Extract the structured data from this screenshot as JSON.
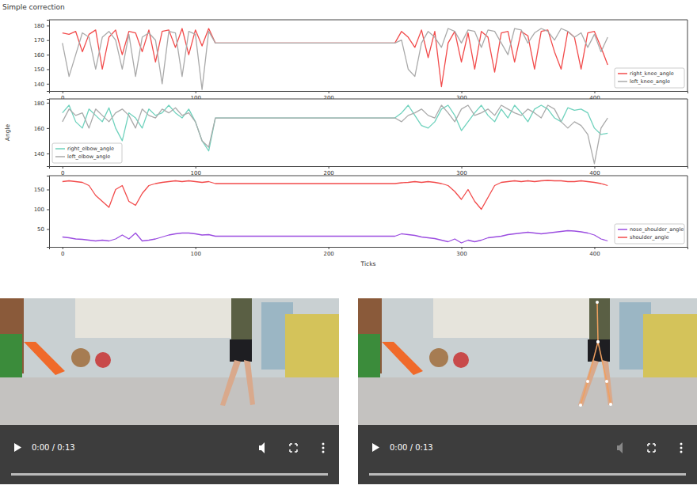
{
  "page": {
    "title": "Simple correction",
    "videos": [
      {
        "time": "0:00 / 0:13"
      },
      {
        "time": "0:00 / 0:13"
      }
    ]
  },
  "chart_data": [
    {
      "type": "line",
      "x": [
        0,
        5,
        10,
        15,
        20,
        25,
        30,
        35,
        40,
        45,
        50,
        55,
        60,
        65,
        70,
        75,
        80,
        85,
        90,
        95,
        100,
        105,
        110,
        115,
        250,
        255,
        260,
        265,
        270,
        275,
        280,
        285,
        290,
        295,
        300,
        305,
        310,
        315,
        320,
        325,
        330,
        335,
        340,
        345,
        350,
        355,
        360,
        365,
        370,
        375,
        380,
        385,
        390,
        395,
        400,
        405,
        410
      ],
      "xlim": [
        -10,
        470
      ],
      "xticks": [
        0,
        100,
        200,
        300,
        400
      ],
      "ylim": [
        135,
        184
      ],
      "yticks": [
        140,
        150,
        160,
        170,
        180
      ],
      "legend": "lower right",
      "series": [
        {
          "name": "right_knee_angle",
          "color": "#f24b4b",
          "values": [
            175,
            174,
            176,
            162,
            174,
            177,
            150,
            172,
            177,
            160,
            176,
            175,
            162,
            177,
            155,
            176,
            177,
            165,
            178,
            160,
            177,
            166,
            178,
            168,
            168,
            176,
            172,
            165,
            177,
            158,
            176,
            138,
            168,
            176,
            155,
            175,
            150,
            176,
            172,
            148,
            175,
            176,
            155,
            176,
            173,
            150,
            176,
            177,
            162,
            150,
            176,
            172,
            150,
            175,
            176,
            165,
            153
          ]
        },
        {
          "name": "left_knee_angle",
          "color": "#aaaaaa",
          "values": [
            168,
            145,
            160,
            175,
            172,
            150,
            172,
            176,
            170,
            150,
            174,
            145,
            172,
            175,
            170,
            140,
            176,
            175,
            145,
            176,
            174,
            136,
            176,
            168,
            168,
            170,
            150,
            145,
            168,
            176,
            172,
            165,
            178,
            176,
            168,
            177,
            176,
            165,
            177,
            176,
            168,
            160,
            178,
            177,
            168,
            175,
            178,
            176,
            170,
            178,
            176,
            172,
            175,
            165,
            174,
            162,
            172
          ]
        }
      ]
    },
    {
      "type": "line",
      "x": [
        0,
        5,
        10,
        15,
        20,
        25,
        30,
        35,
        40,
        45,
        50,
        55,
        60,
        65,
        70,
        75,
        80,
        85,
        90,
        95,
        100,
        105,
        110,
        115,
        250,
        255,
        260,
        265,
        270,
        275,
        280,
        285,
        290,
        295,
        300,
        305,
        310,
        315,
        320,
        325,
        330,
        335,
        340,
        345,
        350,
        355,
        360,
        365,
        370,
        375,
        380,
        385,
        390,
        395,
        400,
        405,
        410
      ],
      "xlim": [
        -10,
        470
      ],
      "xticks": [
        0,
        100,
        200,
        300,
        400
      ],
      "ylim": [
        130,
        183
      ],
      "yticks": [
        140,
        160,
        180
      ],
      "y_label": "Angle",
      "legend": "lower left",
      "series": [
        {
          "name": "right_elbow_angle",
          "color": "#6fd2bd",
          "values": [
            172,
            178,
            165,
            160,
            175,
            170,
            165,
            176,
            160,
            150,
            172,
            168,
            160,
            175,
            170,
            172,
            178,
            172,
            168,
            175,
            165,
            150,
            142,
            168,
            168,
            172,
            178,
            170,
            162,
            160,
            165,
            175,
            178,
            170,
            158,
            165,
            172,
            178,
            170,
            165,
            175,
            168,
            178,
            172,
            165,
            175,
            178,
            175,
            168,
            165,
            176,
            174,
            175,
            172,
            160,
            155,
            156
          ]
        },
        {
          "name": "left_elbow_angle",
          "color": "#aaaaaa",
          "values": [
            165,
            175,
            170,
            172,
            160,
            175,
            170,
            165,
            172,
            175,
            170,
            160,
            175,
            170,
            168,
            175,
            172,
            176,
            170,
            172,
            165,
            150,
            145,
            168,
            168,
            165,
            170,
            172,
            175,
            170,
            168,
            178,
            172,
            165,
            175,
            178,
            170,
            172,
            175,
            170,
            178,
            175,
            172,
            170,
            175,
            172,
            168,
            178,
            175,
            165,
            160,
            165,
            162,
            155,
            132,
            160,
            168
          ]
        }
      ]
    },
    {
      "type": "line",
      "x": [
        0,
        5,
        10,
        15,
        20,
        25,
        30,
        35,
        40,
        45,
        50,
        55,
        60,
        65,
        70,
        75,
        80,
        85,
        90,
        95,
        100,
        105,
        110,
        115,
        250,
        255,
        260,
        265,
        270,
        275,
        280,
        285,
        290,
        295,
        300,
        305,
        310,
        315,
        320,
        325,
        330,
        335,
        340,
        345,
        350,
        355,
        360,
        365,
        370,
        375,
        380,
        385,
        390,
        395,
        400,
        405,
        410
      ],
      "xlim": [
        -10,
        470
      ],
      "xticks": [
        0,
        100,
        200,
        300,
        400
      ],
      "ylim": [
        5,
        185
      ],
      "yticks": [
        50,
        100,
        150
      ],
      "x_label": "Ticks",
      "legend": "lower right",
      "series": [
        {
          "name": "nose_shoulder_angle",
          "color": "#9b4de0",
          "values": [
            30,
            28,
            25,
            24,
            22,
            20,
            22,
            20,
            25,
            35,
            25,
            40,
            20,
            22,
            25,
            30,
            35,
            38,
            40,
            40,
            38,
            35,
            36,
            32,
            32,
            38,
            36,
            34,
            30,
            28,
            26,
            22,
            18,
            25,
            15,
            22,
            18,
            22,
            28,
            30,
            32,
            36,
            38,
            40,
            42,
            40,
            38,
            40,
            42,
            44,
            46,
            45,
            43,
            40,
            35,
            25,
            20
          ]
        },
        {
          "name": "shoulder_angle",
          "color": "#f24b4b",
          "values": [
            170,
            172,
            170,
            168,
            160,
            135,
            120,
            105,
            150,
            160,
            120,
            110,
            140,
            160,
            165,
            168,
            170,
            172,
            170,
            172,
            170,
            168,
            170,
            165,
            165,
            167,
            168,
            170,
            168,
            170,
            168,
            165,
            160,
            145,
            125,
            150,
            120,
            100,
            130,
            160,
            168,
            170,
            172,
            170,
            172,
            170,
            172,
            173,
            172,
            172,
            170,
            170,
            172,
            170,
            168,
            165,
            160
          ]
        }
      ]
    }
  ]
}
